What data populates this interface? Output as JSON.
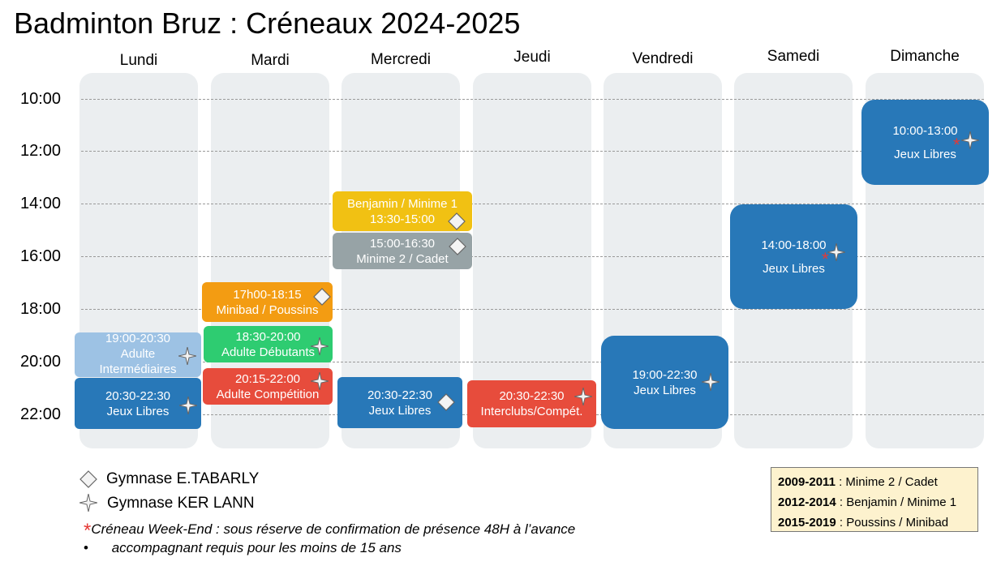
{
  "title": "Badminton Bruz : Créneaux 2024-2025",
  "days": [
    "Lundi",
    "Mardi",
    "Mercredi",
    "Jeudi",
    "Vendredi",
    "Samedi",
    "Dimanche"
  ],
  "hours": [
    "10:00",
    "12:00",
    "14:00",
    "16:00",
    "18:00",
    "20:00",
    "22:00"
  ],
  "colors": {
    "blue": "#2878b8",
    "light_blue": "#9dc2e4",
    "yellow": "#f1c113",
    "grey": "#97a3a6",
    "orange": "#f39c12",
    "green": "#2ecc71",
    "red": "#e74c3c",
    "column_bg": "#ebeef0",
    "note_star": "#e53935"
  },
  "slots": {
    "lundi_intermediaires": {
      "time": "19:00-20:30",
      "label": "Adulte",
      "label2": "Intermédiaires",
      "gym": "star-icon"
    },
    "lundi_libres": {
      "time": "20:30-22:30",
      "label": "Jeux Libres",
      "gym": "star-icon"
    },
    "mardi_minibad": {
      "time": "17h00-18:15",
      "label": "Minibad / Poussins",
      "gym": "diamond-icon"
    },
    "mardi_debutants": {
      "time": "18:30-20:00",
      "label": "Adulte Débutants",
      "gym": "star-icon"
    },
    "mardi_competition": {
      "time": "20:15-22:00",
      "label": "Adulte Compétition",
      "gym": "star-icon"
    },
    "mercredi_benjamin": {
      "label": "Benjamin / Minime 1",
      "time": "13:30-15:00",
      "gym": "diamond-icon"
    },
    "mercredi_minime": {
      "time": "15:00-16:30",
      "label": "Minime 2 / Cadet",
      "gym": "diamond-icon"
    },
    "mercredi_libres": {
      "time": "20:30-22:30",
      "label": "Jeux Libres",
      "gym": "diamond-icon"
    },
    "jeudi_interclubs": {
      "time": "20:30-22:30",
      "label": "Interclubs/Compét.",
      "gym": "star-icon"
    },
    "vendredi_libres": {
      "time": "19:00-22:30",
      "label": "Jeux Libres",
      "gym": "star-icon"
    },
    "samedi_libres": {
      "time": "14:00-18:00",
      "label": "Jeux Libres",
      "gym": "star-icon",
      "weekend_note": "*"
    },
    "dimanche_libres": {
      "time": "10:00-13:00",
      "label": "Jeux Libres",
      "gym": "star-icon",
      "weekend_note": "*"
    }
  },
  "legend": {
    "tabarly": "Gymnase E.TABARLY",
    "kerlann": "Gymnase KER LANN",
    "weekend_mark": "*",
    "weekend_note": "Créneau Week-End : sous réserve de confirmation de présence 48H à l’avance",
    "bullet": "•",
    "minors_note": "accompagnant requis pour les moins de 15 ans"
  },
  "age_groups": [
    {
      "years": "2009-2011",
      "sep": " : ",
      "group": "Minime 2 / Cadet"
    },
    {
      "years": "2012-2014",
      "sep": " : ",
      "group": "Benjamin / Minime 1"
    },
    {
      "years": "2015-2019",
      "sep": " : ",
      "group": "Poussins / Minibad"
    }
  ]
}
